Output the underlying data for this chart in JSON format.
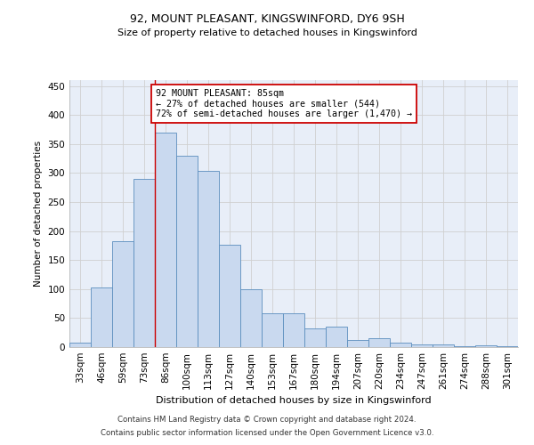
{
  "title1": "92, MOUNT PLEASANT, KINGSWINFORD, DY6 9SH",
  "title2": "Size of property relative to detached houses in Kingswinford",
  "xlabel": "Distribution of detached houses by size in Kingswinford",
  "ylabel": "Number of detached properties",
  "categories": [
    "33sqm",
    "46sqm",
    "59sqm",
    "73sqm",
    "86sqm",
    "100sqm",
    "113sqm",
    "127sqm",
    "140sqm",
    "153sqm",
    "167sqm",
    "180sqm",
    "194sqm",
    "207sqm",
    "220sqm",
    "234sqm",
    "247sqm",
    "261sqm",
    "274sqm",
    "288sqm",
    "301sqm"
  ],
  "values": [
    8,
    102,
    182,
    290,
    370,
    330,
    303,
    176,
    100,
    58,
    58,
    32,
    35,
    12,
    15,
    8,
    5,
    5,
    1,
    3,
    2
  ],
  "bar_color": "#c9d9ef",
  "bar_edge_color": "#5b8ebe",
  "highlight_index": 4,
  "highlight_line_color": "#cc0000",
  "annotation_text": "92 MOUNT PLEASANT: 85sqm\n← 27% of detached houses are smaller (544)\n72% of semi-detached houses are larger (1,470) →",
  "annotation_box_color": "#ffffff",
  "annotation_box_edge": "#cc0000",
  "footnote1": "Contains HM Land Registry data © Crown copyright and database right 2024.",
  "footnote2": "Contains public sector information licensed under the Open Government Licence v3.0.",
  "bg_color": "#ffffff",
  "grid_color": "#d0d0d0",
  "plot_bg_color": "#e8eef8",
  "ylim": [
    0,
    460
  ],
  "yticks": [
    0,
    50,
    100,
    150,
    200,
    250,
    300,
    350,
    400,
    450
  ]
}
